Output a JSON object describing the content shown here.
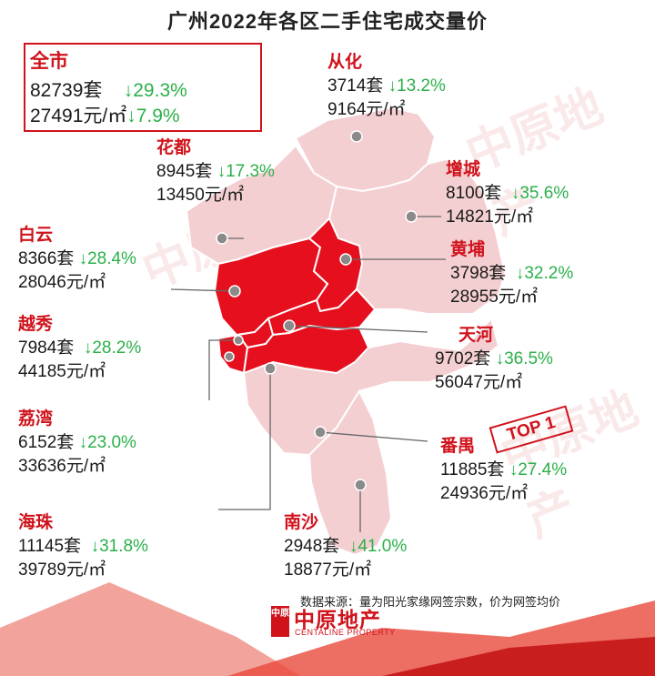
{
  "title": "广州2022年各区二手住宅成交量价",
  "colors": {
    "accent": "#d0121b",
    "down": "#2bb04a",
    "map_fill": "#f4cfd2",
    "highlight_fill": "#e60f1e"
  },
  "city_total": {
    "name": "全市",
    "volume": "82739套",
    "volume_change": "↓29.3%",
    "price": "27491元/㎡",
    "price_change": "↓7.9%"
  },
  "districts": [
    {
      "id": "conghua",
      "name": "从化",
      "volume": "3714套",
      "volume_change": "↓13.2%",
      "price": "9164元/㎡"
    },
    {
      "id": "huadu",
      "name": "花都",
      "volume": "8945套",
      "volume_change": "↓17.3%",
      "price": "13450元/㎡"
    },
    {
      "id": "zengcheng",
      "name": "增城",
      "volume": "8100套",
      "volume_change": "↓35.6%",
      "price": "14821元/㎡"
    },
    {
      "id": "baiyun",
      "name": "白云",
      "volume": "8366套",
      "volume_change": "↓28.4%",
      "price": "28046元/㎡"
    },
    {
      "id": "huangpu",
      "name": "黄埔",
      "volume": "3798套",
      "volume_change": "↓32.2%",
      "price": "28955元/㎡"
    },
    {
      "id": "yuexiu",
      "name": "越秀",
      "volume": "7984套",
      "volume_change": "↓28.2%",
      "price": "44185元/㎡"
    },
    {
      "id": "tianhe",
      "name": "天河",
      "volume": "9702套",
      "volume_change": "↓36.5%",
      "price": "56047元/㎡"
    },
    {
      "id": "liwan",
      "name": "荔湾",
      "volume": "6152套",
      "volume_change": "↓23.0%",
      "price": "33636元/㎡"
    },
    {
      "id": "panyu",
      "name": "番禺",
      "volume": "11885套",
      "volume_change": "↓27.4%",
      "price": "24936元/㎡"
    },
    {
      "id": "haizhu",
      "name": "海珠",
      "volume": "11145套",
      "volume_change": "↓31.8%",
      "price": "39789元/㎡"
    },
    {
      "id": "nansha",
      "name": "南沙",
      "volume": "2948套",
      "volume_change": "↓41.0%",
      "price": "18877元/㎡"
    }
  ],
  "top_badge": "TOP 1",
  "source_note": "数据来源：量为阳光家缘网签宗数，价为网签均价",
  "logo": {
    "seal": "中原",
    "name": "中原地产",
    "english": "CENTALINE PROPERTY"
  },
  "watermark": "中原地产"
}
